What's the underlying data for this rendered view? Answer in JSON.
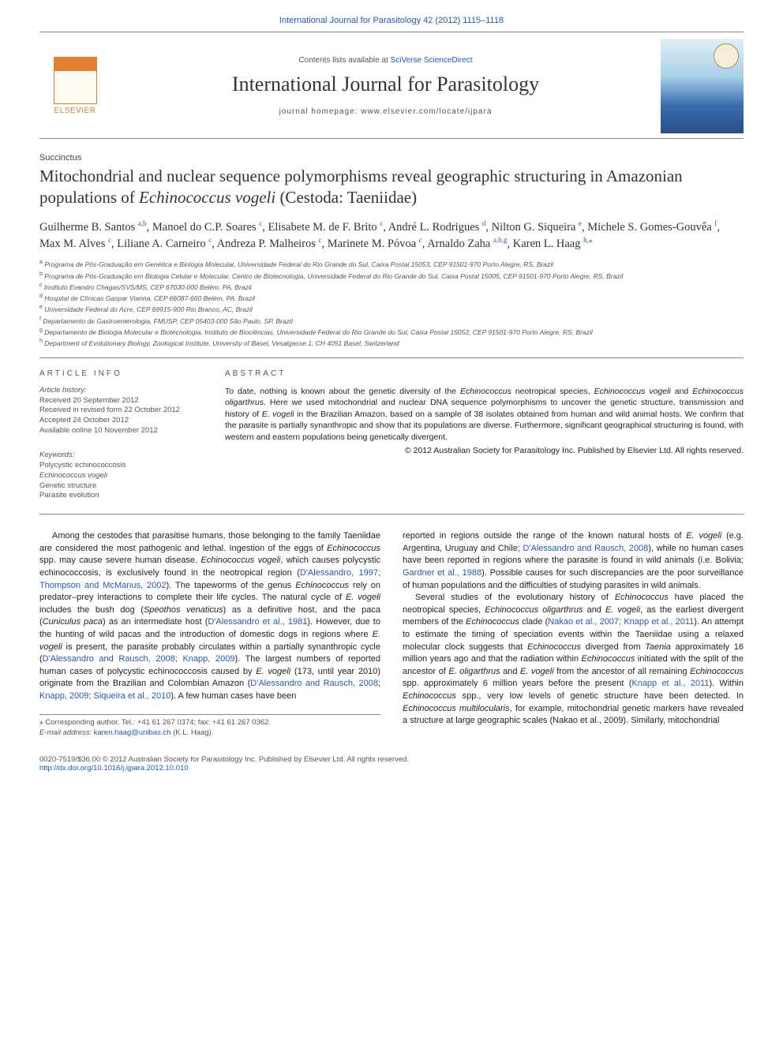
{
  "top_citation": "International Journal for Parasitology 42 (2012) 1115–1118",
  "header": {
    "contents_line_pre": "Contents lists available at ",
    "contents_line_link": "SciVerse ScienceDirect",
    "journal_name": "International Journal for Parasitology",
    "homepage_pre": "journal homepage: ",
    "homepage_url": "www.elsevier.com/locate/ijpara",
    "elsevier": "ELSEVIER"
  },
  "article": {
    "section_type": "Succinctus",
    "title_html": "Mitochondrial and nuclear sequence polymorphisms reveal geographic structuring in Amazonian populations of <span class='ital'>Echinococcus vogeli</span> (Cestoda: Taeniidae)",
    "authors_html": "Guilherme B. Santos <span class='sup'>a,b</span>, Manoel do C.P. Soares <span class='sup'>c</span>, Elisabete M. de F. Brito <span class='sup'>c</span>, André L. Rodrigues <span class='sup'>d</span>, Nilton G. Siqueira <span class='sup'>e</span>, Michele S. Gomes-Gouvêa <span class='sup'>f</span>, Max M. Alves <span class='sup'>c</span>, Liliane A. Carneiro <span class='sup'>c</span>, Andreza P. Malheiros <span class='sup'>c</span>, Marinete M. Póvoa <span class='sup'>c</span>, Arnaldo Zaha <span class='sup'>a,b,g</span>, Karen L. Haag <span class='sup'>h,</span><span class='sup'>⁎</span>"
  },
  "affiliations": [
    {
      "sup": "a",
      "text": "Programa de Pós-Graduação em Genética e Biologia Molecular, Universidade Federal do Rio Grande do Sul, Caixa Postal 15053, CEP 91501-970 Porto Alegre, RS, Brazil"
    },
    {
      "sup": "b",
      "text": "Programa de Pós-Graduação em Biologia Celular e Molecular, Centro de Biotecnologia, Universidade Federal do Rio Grande do Sul, Caixa Postal 15005, CEP 91501-970 Porto Alegre, RS, Brazil"
    },
    {
      "sup": "c",
      "text": "Instituto Evandro Chagas/SVS/MS, CEP 67030-000 Belém, PA, Brazil"
    },
    {
      "sup": "d",
      "text": "Hospital de Clínicas Gaspar Vianna, CEP 66087-660 Belém, PA, Brazil"
    },
    {
      "sup": "e",
      "text": "Universidade Federal do Acre, CEP 69915-900 Rio Branco, AC, Brazil"
    },
    {
      "sup": "f",
      "text": "Departamento de Gastroenterologia, FMUSP, CEP 05403-000 São Paulo, SP, Brazil"
    },
    {
      "sup": "g",
      "text": "Departamento de Biologia Molecular e Biotecnologia, Instituto de Biociências, Universidade Federal do Rio Grande do Sul, Caixa Postal 15053, CEP 91501-970 Porto Alegre, RS, Brazil"
    },
    {
      "sup": "h",
      "text": "Department of Evolutionary Biology, Zoological Institute, University of Basel, Vesalgasse 1, CH 4051 Basel, Switzerland"
    }
  ],
  "article_info": {
    "header": "ARTICLE INFO",
    "history_label": "Article history:",
    "history": [
      "Received 20 September 2012",
      "Received in revised form 22 October 2012",
      "Accepted 24 October 2012",
      "Available online 10 November 2012"
    ],
    "keywords_label": "Keywords:",
    "keywords_html": [
      "Polycystic echinococcosis",
      "<span class='ital'>Echinococcus vogeli</span>",
      "Genetic structure",
      "Parasite evolution"
    ]
  },
  "abstract": {
    "header": "ABSTRACT",
    "text_html": "To date, nothing is known about the genetic diversity of the <span class='ital'>Echinococcus</span> neotropical species, <span class='ital'>Echinococcus vogeli</span> and <span class='ital'>Echinococcus oligarthrus</span>. Here we used mitochondrial and nuclear DNA sequence polymorphisms to uncover the genetic structure, transmission and history of <span class='ital'>E. vogeli</span> in the Brazilian Amazon, based on a sample of 38 isolates obtained from human and wild animal hosts. We confirm that the parasite is partially synanthropic and show that its populations are diverse. Furthermore, significant geographical structuring is found, with western and eastern populations being genetically divergent.",
    "copyright": "© 2012 Australian Society for Parasitology Inc. Published by Elsevier Ltd. All rights reserved."
  },
  "body": {
    "para1_html": "Among the cestodes that parasitise humans, those belonging to the family Taeniidae are considered the most pathogenic and lethal. Ingestion of the eggs of <span class='ital'>Echinococcus</span> spp. may cause severe human disease. <span class='ital'>Echinococcus vogeli</span>, which causes polycystic echinococcosis, is exclusively found in the neotropical region (<span class='link'>D'Alessandro, 1997; Thompson and McManus, 2002</span>). The tapeworms of the genus <span class='ital'>Echinococcus</span> rely on predator–prey interactions to complete their life cycles. The natural cycle of <span class='ital'>E. vogeli</span> includes the bush dog (<span class='ital'>Speothos venaticus</span>) as a definitive host, and the paca (<span class='ital'>Cuniculus paca</span>) as an intermediate host (<span class='link'>D'Alessandro et al., 1981</span>). However, due to the hunting of wild pacas and the introduction of domestic dogs in regions where <span class='ital'>E. vogeli</span> is present, the parasite probably circulates within a partially synanthropic cycle (<span class='link'>D'Alessandro and Rausch, 2008; Knapp, 2009</span>). The largest numbers of reported human cases of polycystic echinococcosis caused by <span class='ital'>E. vogeli</span> (173, until year 2010) originate from the Brazilian and Colombian Amazon (<span class='link'>D'Alessandro and Rausch, 2008</span>; <span class='link'>Knapp, 2009</span>; <span class='link'>Siqueira et al., 2010</span>). A few human cases have been",
    "para1b_html": "reported in regions outside the range of the known natural hosts of <span class='ital'>E. vogeli</span> (e.g. Argentina, Uruguay and Chile; <span class='link'>D'Alessandro and Rausch, 2008</span>), while no human cases have been reported in regions where the parasite is found in wild animals (i.e. Bolivia; <span class='link'>Gardner et al., 1988</span>). Possible causes for such discrepancies are the poor surveillance of human populations and the difficulties of studying parasites in wild animals.",
    "para2_html": "Several studies of the evolutionary history of <span class='ital'>Echinococcus</span> have placed the neotropical species, <span class='ital'>Echinococcus oligarthrus</span> and <span class='ital'>E. vogeli</span>, as the earliest divergent members of the <span class='ital'>Echinococcus</span> clade (<span class='link'>Nakao et al., 2007; Knapp et al., 2011</span>). An attempt to estimate the timing of speciation events within the Taeniidae using a relaxed molecular clock suggests that <span class='ital'>Echinococcus</span> diverged from <span class='ital'>Taenia</span> approximately 16 million years ago and that the radiation within <span class='ital'>Echinococcus</span> initiated with the split of the ancestor of <span class='ital'>E. oligarthrus</span> and <span class='ital'>E. vogeli</span> from the ancestor of all remaining <span class='ital'>Echinococcus</span> spp. approximately 6 million years before the present (<span class='link'>Knapp et al., 2011</span>). Within <span class='ital'>Echinococcus</span> spp., very low levels of genetic structure have been detected. In <span class='ital'>Echinococcus multilocularis</span>, for example, mitochondrial genetic markers have revealed a structure at large geographic scales (Nakao et al., 2009). Similarly, mitochondrial"
  },
  "footnote": {
    "corr": "⁎ Corresponding author. Tel.: +41 61 267 0374; fax: +41 61 267 0362.",
    "email_label": "E-mail address:",
    "email": "karen.haag@unibas.ch",
    "email_person": " (K.L. Haag)."
  },
  "footer": {
    "left_line1": "0020-7519/$36.00 © 2012 Australian Society for Parasitology Inc. Published by Elsevier Ltd. All rights reserved.",
    "doi": "http://dx.doi.org/10.1016/j.ijpara.2012.10.010"
  },
  "colors": {
    "link": "#2259b3",
    "elsevier": "#e08030",
    "rule": "#888888",
    "text": "#222222",
    "muted": "#555555",
    "cover_top": "#dff0f8",
    "cover_bottom": "#2a4e85"
  },
  "typography": {
    "body_pt": 11,
    "title_pt": 21,
    "journal_pt": 26,
    "authors_pt": 14.5,
    "aff_pt": 8.5,
    "meta_pt": 9.5,
    "abstract_pt": 10.5
  }
}
